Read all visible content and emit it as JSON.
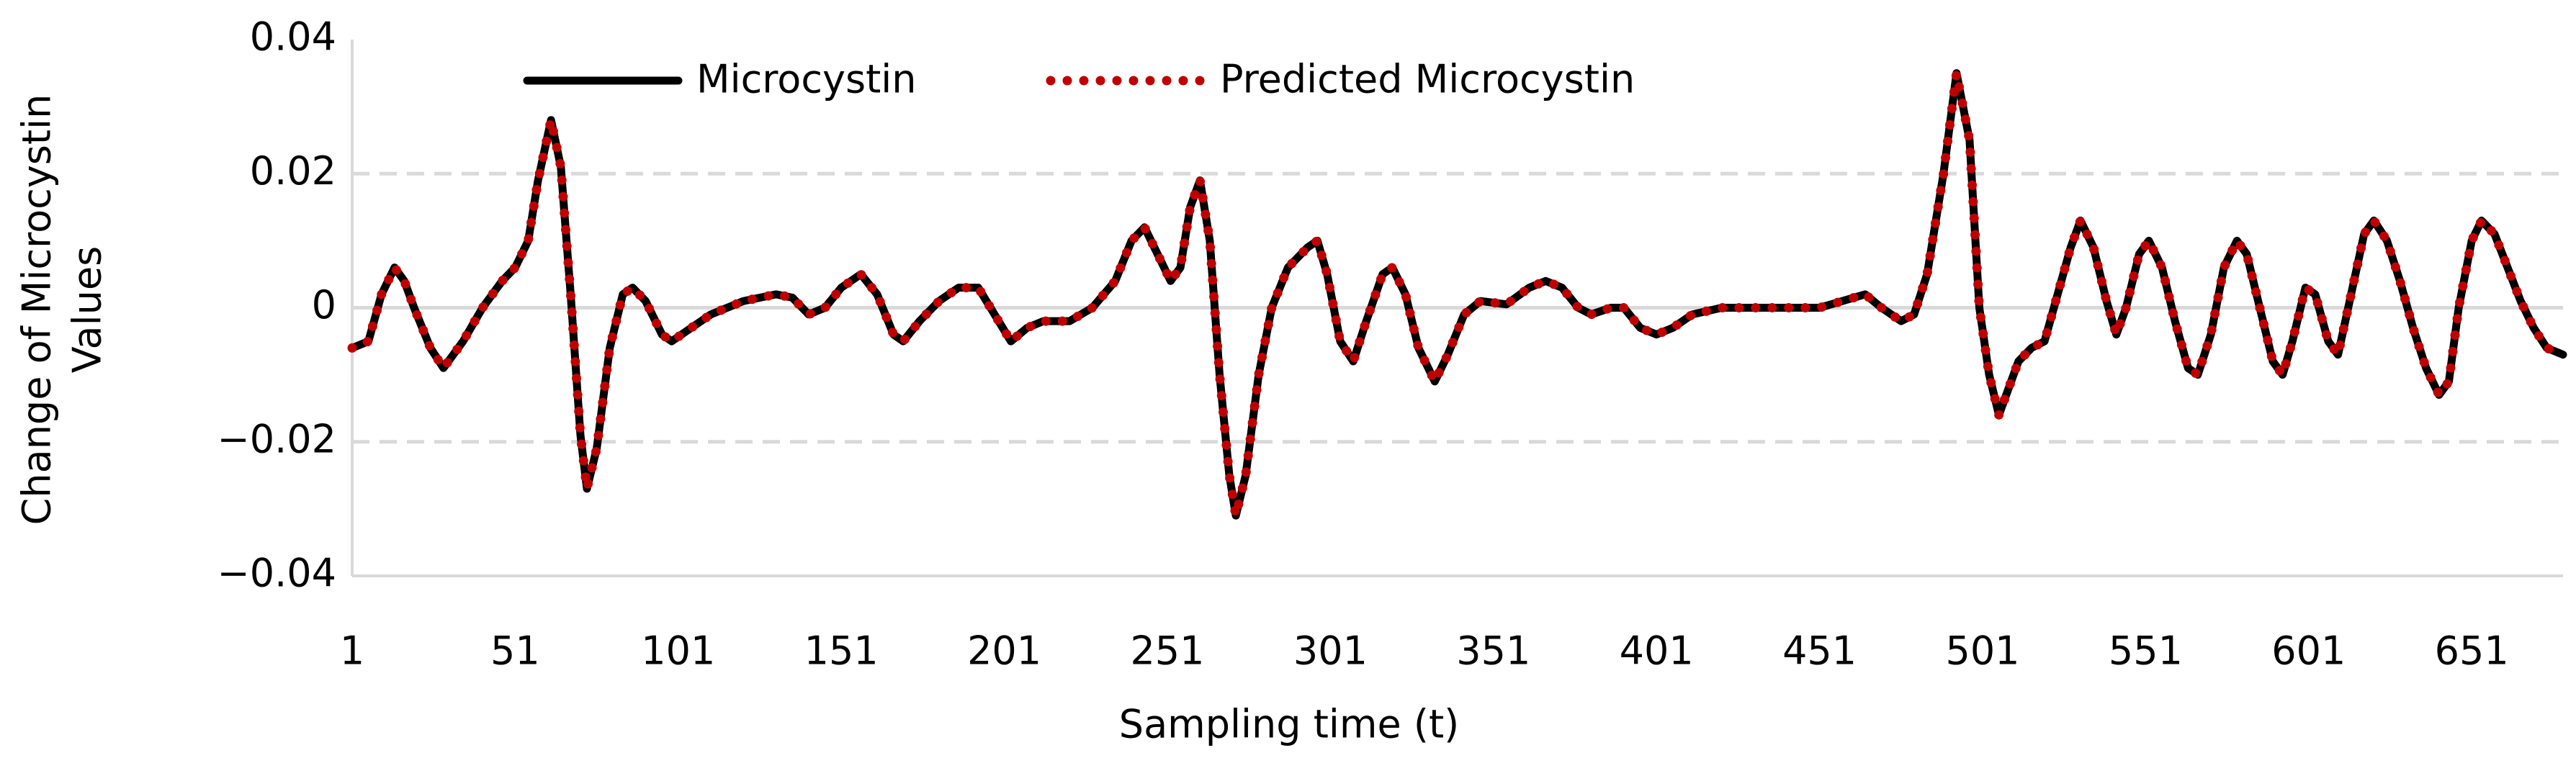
{
  "chart_data": {
    "type": "line",
    "ylabel": [
      "Change of Microcystin",
      "Values"
    ],
    "xlabel": "Sampling time (t)",
    "x": [
      1,
      6,
      10,
      14,
      17,
      20,
      25,
      29,
      35,
      41,
      47,
      51,
      55,
      58,
      62,
      65,
      68,
      71,
      73,
      76,
      80,
      84,
      87,
      91,
      96,
      99,
      105,
      111,
      121,
      131,
      136,
      141,
      146,
      151,
      157,
      162,
      167,
      170,
      175,
      181,
      187,
      193,
      198,
      203,
      208,
      213,
      221,
      228,
      235,
      240,
      244,
      248,
      252,
      255,
      258,
      261,
      264,
      267,
      270,
      272,
      275,
      279,
      283,
      288,
      294,
      297,
      300,
      304,
      308,
      312,
      317,
      320,
      324,
      328,
      333,
      337,
      342,
      347,
      355,
      362,
      367,
      372,
      377,
      381,
      387,
      391,
      396,
      401,
      406,
      412,
      421,
      431,
      441,
      451,
      458,
      465,
      470,
      476,
      480,
      484,
      489,
      493,
      497,
      500,
      503,
      506,
      509,
      512,
      516,
      520,
      524,
      528,
      531,
      535,
      539,
      542,
      545,
      549,
      552,
      556,
      560,
      564,
      567,
      571,
      575,
      579,
      582,
      586,
      590,
      593,
      596,
      600,
      603,
      607,
      610,
      614,
      618,
      621,
      625,
      629,
      633,
      637,
      641,
      644,
      647,
      651,
      654,
      658,
      662,
      666,
      670,
      674,
      679
    ],
    "series": [
      {
        "name": "Microcystin",
        "color": "#000000",
        "style": "solid",
        "values": [
          -0.006,
          -0.005,
          0.002,
          0.006,
          0.004,
          0.0,
          -0.006,
          -0.009,
          -0.005,
          0.0,
          0.004,
          0.006,
          0.01,
          0.019,
          0.028,
          0.021,
          0.002,
          -0.019,
          -0.027,
          -0.021,
          -0.006,
          0.002,
          0.003,
          0.001,
          -0.004,
          -0.005,
          -0.003,
          -0.001,
          0.001,
          0.002,
          0.0015,
          -0.001,
          0.0,
          0.003,
          0.005,
          0.002,
          -0.004,
          -0.005,
          -0.002,
          0.001,
          0.003,
          0.003,
          -0.001,
          -0.005,
          -0.003,
          -0.002,
          -0.002,
          0.0,
          0.004,
          0.01,
          0.012,
          0.008,
          0.004,
          0.006,
          0.015,
          0.019,
          0.01,
          -0.01,
          -0.025,
          -0.031,
          -0.025,
          -0.01,
          0.0,
          0.006,
          0.009,
          0.01,
          0.005,
          -0.005,
          -0.008,
          -0.002,
          0.005,
          0.006,
          0.002,
          -0.006,
          -0.011,
          -0.007,
          -0.001,
          0.001,
          0.0005,
          0.003,
          0.004,
          0.003,
          0.0,
          -0.001,
          0.0,
          0.0,
          -0.003,
          -0.004,
          -0.003,
          -0.001,
          0.0,
          0.0,
          0.0,
          0.0,
          0.001,
          0.002,
          0.0,
          -0.002,
          -0.001,
          0.005,
          0.02,
          0.035,
          0.025,
          0.0,
          -0.01,
          -0.016,
          -0.012,
          -0.008,
          -0.006,
          -0.005,
          0.002,
          0.009,
          0.013,
          0.009,
          0.001,
          -0.004,
          0.0,
          0.008,
          0.01,
          0.006,
          -0.002,
          -0.009,
          -0.01,
          -0.004,
          0.006,
          0.01,
          0.008,
          0.0,
          -0.008,
          -0.01,
          -0.005,
          0.003,
          0.002,
          -0.005,
          -0.007,
          0.002,
          0.011,
          0.013,
          0.01,
          0.004,
          -0.003,
          -0.009,
          -0.013,
          -0.011,
          0.0,
          0.01,
          0.013,
          0.011,
          0.006,
          0.001,
          -0.003,
          -0.006,
          -0.007
        ]
      },
      {
        "name": "Predicted Microcystin",
        "color": "#c00000",
        "style": "dotted",
        "values": [
          -0.006,
          -0.005,
          0.002,
          0.006,
          0.004,
          0.0,
          -0.006,
          -0.009,
          -0.005,
          0.0,
          0.004,
          0.006,
          0.01,
          0.019,
          0.028,
          0.021,
          0.002,
          -0.019,
          -0.027,
          -0.021,
          -0.006,
          0.002,
          0.003,
          0.001,
          -0.004,
          -0.005,
          -0.003,
          -0.001,
          0.001,
          0.002,
          0.0015,
          -0.001,
          0.0,
          0.003,
          0.005,
          0.002,
          -0.004,
          -0.005,
          -0.002,
          0.001,
          0.003,
          0.003,
          -0.001,
          -0.005,
          -0.003,
          -0.002,
          -0.002,
          0.0,
          0.004,
          0.01,
          0.012,
          0.008,
          0.004,
          0.006,
          0.015,
          0.019,
          0.01,
          -0.01,
          -0.025,
          -0.031,
          -0.025,
          -0.01,
          0.0,
          0.006,
          0.009,
          0.01,
          0.005,
          -0.005,
          -0.008,
          -0.002,
          0.005,
          0.006,
          0.002,
          -0.006,
          -0.011,
          -0.007,
          -0.001,
          0.001,
          0.0005,
          0.003,
          0.004,
          0.003,
          0.0,
          -0.001,
          0.0,
          0.0,
          -0.003,
          -0.004,
          -0.003,
          -0.001,
          0.0,
          0.0,
          0.0,
          0.0,
          0.001,
          0.002,
          0.0,
          -0.002,
          -0.001,
          0.005,
          0.02,
          0.035,
          0.025,
          0.0,
          -0.01,
          -0.016,
          -0.012,
          -0.008,
          -0.006,
          -0.005,
          0.002,
          0.009,
          0.013,
          0.009,
          0.001,
          -0.004,
          0.0,
          0.008,
          0.01,
          0.006,
          -0.002,
          -0.009,
          -0.01,
          -0.004,
          0.006,
          0.01,
          0.008,
          0.0,
          -0.008,
          -0.01,
          -0.005,
          0.003,
          0.002,
          -0.005,
          -0.007,
          0.002,
          0.011,
          0.013,
          0.01,
          0.004,
          -0.003,
          -0.009,
          -0.013,
          -0.011,
          0.0,
          0.01,
          0.013,
          0.011,
          0.006,
          0.001,
          -0.003,
          -0.006,
          -0.007
        ]
      }
    ],
    "xlim": [
      1,
      679
    ],
    "xticks": [
      1,
      51,
      101,
      151,
      201,
      251,
      301,
      351,
      401,
      451,
      501,
      551,
      601,
      651
    ],
    "ylim": [
      -0.04,
      0.04
    ],
    "yticks": [
      {
        "value": -0.04,
        "label": "−0.04"
      },
      {
        "value": -0.02,
        "label": "−0.02"
      },
      0,
      0.02,
      0.04
    ],
    "grid": true,
    "legend": "top"
  }
}
